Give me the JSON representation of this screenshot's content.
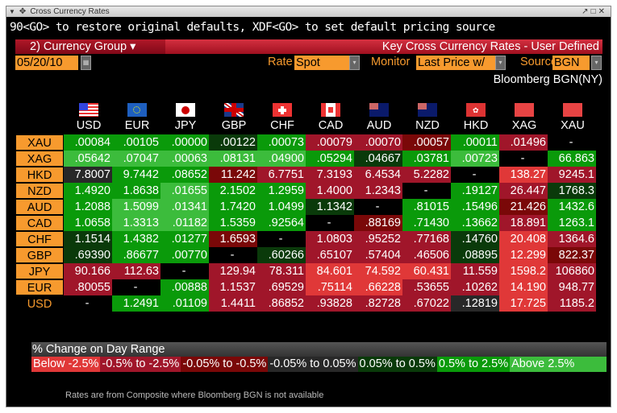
{
  "window": {
    "title": "Cross Currency Rates"
  },
  "command_hint": "90<GO> to restore original defaults, XDF<GO> to set default pricing source",
  "group_button": "2)  Currency Group  ▾",
  "group_title": "Key Cross Currency Rates - User Defined",
  "date": "05/20/10",
  "rate_label": "Rate",
  "rate_value": "Spot",
  "monitor_label": "Monitor",
  "monitor_value": "Last Price w/",
  "source_label": "Source",
  "source_value": "BGN",
  "source_name": "Bloomberg BGN(NY)",
  "columns": [
    "USD",
    "EUR",
    "JPY",
    "GBP",
    "CHF",
    "CAD",
    "AUD",
    "NZD",
    "HKD",
    "XAG",
    "XAU"
  ],
  "rows": [
    {
      "label": "XAU",
      "values": [
        ".00084",
        ".00105",
        ".00000",
        ".00122",
        ".00073",
        ".00079",
        ".00070",
        ".00057",
        ".00011",
        ".01496",
        "-"
      ],
      "classes": [
        "g2",
        "g2",
        "g2",
        "g1",
        "g2",
        "r2",
        "r2",
        "r1",
        "g2",
        "r2",
        "X"
      ]
    },
    {
      "label": "XAG",
      "values": [
        ".05642",
        ".07047",
        ".00063",
        ".08131",
        ".04900",
        ".05294",
        ".04667",
        ".03781",
        ".00723",
        "-",
        "66.863"
      ],
      "classes": [
        "g3",
        "g3",
        "g3",
        "g3",
        "g3",
        "g2",
        "g1",
        "g2",
        "g3",
        "X",
        "g2"
      ]
    },
    {
      "label": "HKD",
      "values": [
        "7.8007",
        "9.7442",
        ".08652",
        "11.242",
        "6.7751",
        "7.3193",
        "6.4534",
        "5.2282",
        "-",
        "138.27",
        "9245.1"
      ],
      "classes": [
        "N",
        "g2",
        "g2",
        "r1",
        "r2",
        "r2",
        "r2",
        "r2",
        "X",
        "r3",
        "r2"
      ]
    },
    {
      "label": "NZD",
      "values": [
        "1.4920",
        "1.8638",
        ".01655",
        "2.1502",
        "1.2959",
        "1.4000",
        "1.2343",
        "-",
        ".19127",
        "26.447",
        "1768.3"
      ],
      "classes": [
        "g2",
        "g2",
        "g3",
        "g2",
        "g2",
        "r2",
        "r2",
        "X",
        "g2",
        "r2",
        "g1"
      ]
    },
    {
      "label": "AUD",
      "values": [
        "1.2088",
        "1.5099",
        ".01341",
        "1.7420",
        "1.0499",
        "1.1342",
        "-",
        ".81015",
        ".15496",
        "21.426",
        "1432.6"
      ],
      "classes": [
        "g2",
        "g3",
        "g3",
        "g2",
        "g2",
        "g1",
        "X",
        "g2",
        "g2",
        "r1",
        "g2"
      ]
    },
    {
      "label": "CAD",
      "values": [
        "1.0658",
        "1.3313",
        ".01182",
        "1.5359",
        ".92564",
        "-",
        ".88169",
        ".71430",
        ".13662",
        "18.891",
        "1263.1"
      ],
      "classes": [
        "g2",
        "g3",
        "g3",
        "g2",
        "g2",
        "X",
        "r1",
        "g2",
        "g2",
        "r2",
        "g2"
      ]
    },
    {
      "label": "CHF",
      "values": [
        "1.1514",
        "1.4382",
        ".01277",
        "1.6593",
        "-",
        "1.0803",
        ".95252",
        ".77168",
        ".14760",
        "20.408",
        "1364.6"
      ],
      "classes": [
        "g1",
        "g2",
        "g2",
        "r1",
        "X",
        "r2",
        "r2",
        "r2",
        "g1",
        "r3",
        "r2"
      ]
    },
    {
      "label": "GBP",
      "values": [
        ".69390",
        ".86677",
        ".00770",
        "-",
        ".60266",
        ".65107",
        ".57404",
        ".46506",
        ".08895",
        "12.299",
        "822.37"
      ],
      "classes": [
        "g1",
        "g2",
        "g2",
        "X",
        "g1",
        "r2",
        "r2",
        "r2",
        "g1",
        "r3",
        "r1"
      ]
    },
    {
      "label": "JPY",
      "values": [
        "90.166",
        "112.63",
        "-",
        "129.94",
        "78.311",
        "84.601",
        "74.592",
        "60.431",
        "11.559",
        "1598.2",
        "106860"
      ],
      "classes": [
        "r2",
        "r2",
        "X",
        "r2",
        "r2",
        "r3",
        "r3",
        "r3",
        "r2",
        "r3",
        "r2"
      ]
    },
    {
      "label": "EUR",
      "values": [
        ".80055",
        "-",
        ".00888",
        "1.1537",
        ".69529",
        ".75114",
        ".66228",
        ".53655",
        ".10262",
        "14.190",
        "948.77"
      ],
      "classes": [
        "r2",
        "X",
        "g2",
        "r2",
        "r2",
        "r3",
        "r3",
        "r2",
        "r2",
        "r3",
        "r2"
      ]
    },
    {
      "label": "USD",
      "values": [
        "-",
        "1.2491",
        ".01109",
        "1.4411",
        ".86852",
        ".93828",
        ".82728",
        ".67022",
        ".12819",
        "17.725",
        "1185.2"
      ],
      "classes": [
        "X",
        "g2",
        "g2",
        "r2",
        "r2",
        "r2",
        "r2",
        "r2",
        "N",
        "r3",
        "r2"
      ]
    }
  ],
  "legend": {
    "title": "% Change on Day Range",
    "items": [
      {
        "label": "Below -2.5%",
        "color": "#e03838"
      },
      {
        "label": "-0.5% to -2.5%",
        "color": "#a0162a"
      },
      {
        "label": "-0.05% to -0.5%",
        "color": "#7a0808"
      },
      {
        "label": "-0.05% to 0.05%",
        "color": "#282828"
      },
      {
        "label": "0.05% to 0.5%",
        "color": "#0a3a0a"
      },
      {
        "label": "0.5% to 2.5%",
        "color": "#0a9a0a"
      },
      {
        "label": "Above 2.5%",
        "color": "#3cbc3c"
      }
    ]
  },
  "footer": "Rates are from Composite where Bloomberg BGN is not available"
}
